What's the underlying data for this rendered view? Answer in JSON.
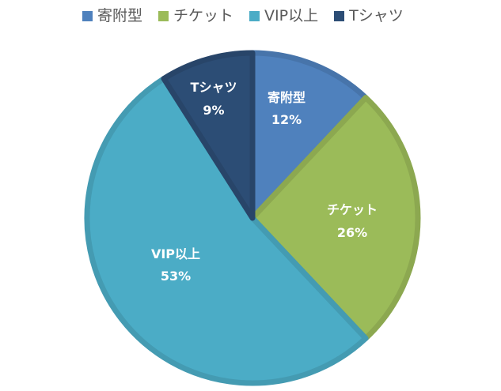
{
  "chart_data": {
    "type": "pie",
    "title": "",
    "legend_position": "top",
    "categories": [
      "寄附型",
      "チケット",
      "VIP以上",
      "Tシャツ"
    ],
    "values": [
      12,
      26,
      53,
      9
    ],
    "unit": "%",
    "colors": [
      "#4F81BD",
      "#9BBB59",
      "#4BACC6",
      "#2C4D75"
    ],
    "data_labels": [
      "寄附型\n12%",
      "チケット\n26%",
      "VIP以上\n53%",
      "Tシャツ\n9%"
    ]
  },
  "legend": {
    "items": [
      {
        "label": "寄附型",
        "color": "#4F81BD"
      },
      {
        "label": "チケット",
        "color": "#9BBB59"
      },
      {
        "label": "VIP以上",
        "color": "#4BACC6"
      },
      {
        "label": "Tシャツ",
        "color": "#2C4D75"
      }
    ]
  },
  "slices": [
    {
      "name": "寄附型",
      "pct": "12%"
    },
    {
      "name": "チケット",
      "pct": "26%"
    },
    {
      "name": "VIP以上",
      "pct": "53%"
    },
    {
      "name": "Tシャツ",
      "pct": "9%"
    }
  ]
}
